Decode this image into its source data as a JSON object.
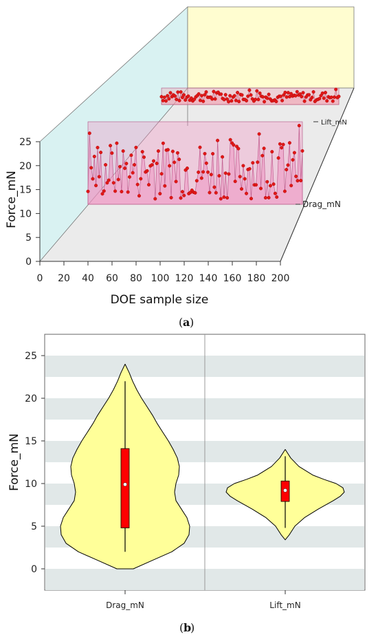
{
  "chart_data": [
    {
      "type": "scatter",
      "panel": "(a)",
      "panel_letter": "a",
      "ylabel": "Force_mN",
      "xlabel": "DOE sample size",
      "ylim": [
        0,
        25
      ],
      "xlim": [
        0,
        200
      ],
      "y_ticks": [
        "0",
        "5",
        "10",
        "15",
        "20",
        "25"
      ],
      "x_ticks": [
        "0",
        "20",
        "40",
        "60",
        "80",
        "100",
        "120",
        "140",
        "160",
        "180",
        "200"
      ],
      "series": [
        {
          "name": "Drag_mN",
          "color": "#e02020"
        },
        {
          "name": "Lift_mN",
          "color": "#e02020"
        }
      ]
    },
    {
      "type": "violin",
      "panel": "(b)",
      "panel_letter": "b",
      "ylabel": "Force_mN",
      "ylim": [
        -2.5,
        27.5
      ],
      "y_ticks": [
        "0",
        "5",
        "10",
        "15",
        "20",
        "25"
      ],
      "categories": [
        "Drag_mN",
        "Lift_mN"
      ],
      "box": [
        {
          "category": "Drag_mN",
          "min": 2,
          "q1": 4.8,
          "median": 9.9,
          "q3": 14.1,
          "max": 22
        },
        {
          "category": "Lift_mN",
          "min": 4.8,
          "q1": 7.9,
          "median": 9.2,
          "q3": 10.3,
          "max": 13.2
        }
      ],
      "density_range": [
        {
          "category": "Drag_mN",
          "low": 0,
          "high": 24
        },
        {
          "category": "Lift_mN",
          "low": 3.4,
          "high": 14
        }
      ],
      "violin_color": "#ffff99",
      "box_color": "#ff0000"
    }
  ]
}
